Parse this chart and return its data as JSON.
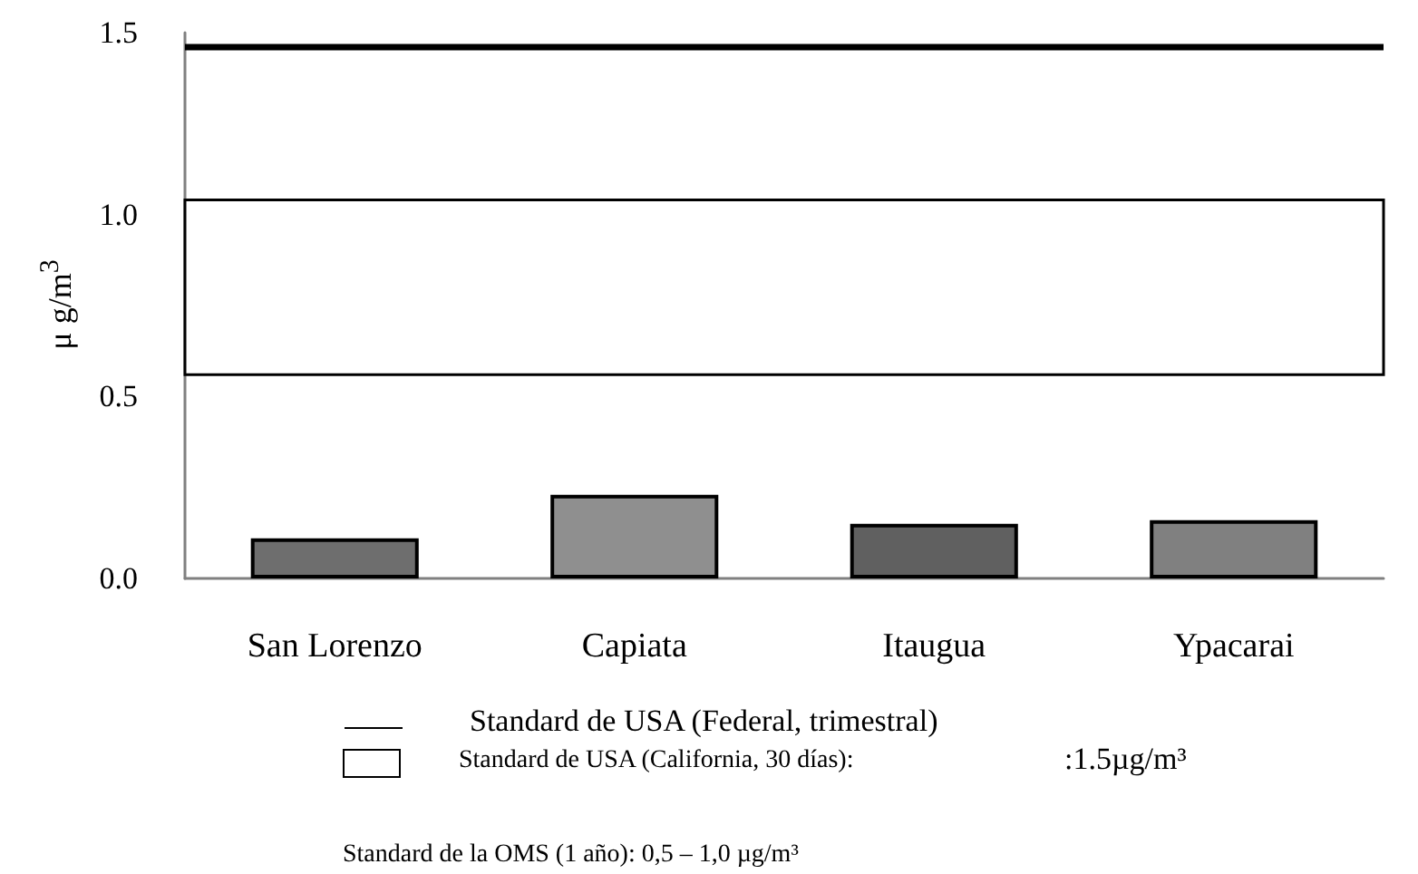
{
  "chart_data": {
    "type": "bar",
    "ylabel": "μ g/m$^{3}$",
    "categories": [
      "San Lorenzo",
      "Capiata",
      "Itaugua",
      "Ypacarai"
    ],
    "values": [
      0.11,
      0.23,
      0.15,
      0.16
    ],
    "colors": [
      "#6e6e6e",
      "#8f8f8f",
      "#606060",
      "#808080"
    ],
    "ylim": [
      0,
      1.5
    ],
    "yticks": [
      {
        "value": 0,
        "label": "0.0"
      },
      {
        "value": 0.5,
        "label": "0.5"
      },
      {
        "value": 1,
        "label": "1.0"
      },
      {
        "value": 1.5,
        "label": "1.5"
      }
    ],
    "grid": false,
    "legend": "bottom",
    "ref_lines": [
      {
        "axis": "y",
        "value": 1.46,
        "label": "Standard de USA (Federal, trimestral)",
        "color": "#000000",
        "line_style": "solid"
      }
    ],
    "bands": [
      {
        "axis": "y",
        "from": 0.56,
        "to": 1.04,
        "label": "Standard de USA (California, 30 días):",
        "color": "#ffffff"
      }
    ],
    "annotations": [
      ":1.5µg/m³",
      "Standard de la OMS (1 año): 0,5 – 1,0 µg/m³"
    ]
  }
}
